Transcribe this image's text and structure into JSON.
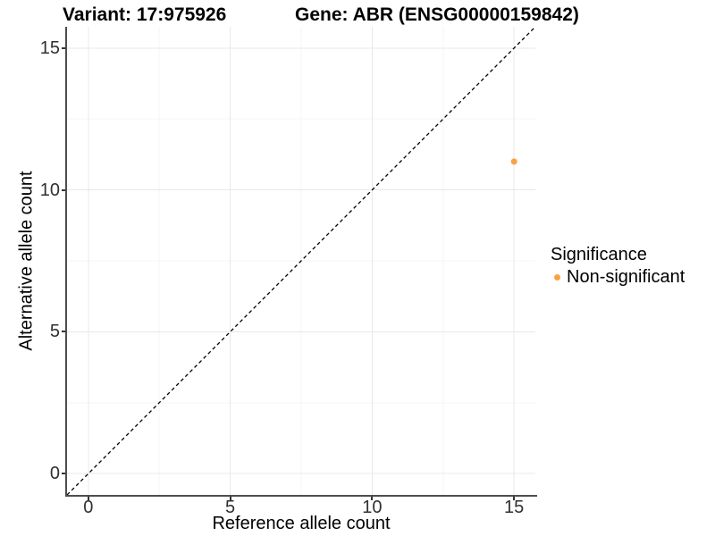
{
  "titles": {
    "variant": "Variant: 17:975926",
    "gene": "Gene: ABR (ENSG00000159842)"
  },
  "axes": {
    "x": {
      "label": "Reference allele count",
      "tick_values": [
        0,
        5,
        10,
        15
      ],
      "tick_labels": [
        "0",
        "5",
        "10",
        "15"
      ],
      "minor_ticks": [
        2.5,
        7.5,
        12.5
      ],
      "range": [
        -0.75,
        15.75
      ]
    },
    "y": {
      "label": "Alternative allele count",
      "tick_values": [
        0,
        5,
        10,
        15
      ],
      "tick_labels": [
        "0",
        "5",
        "10",
        "15"
      ],
      "minor_ticks": [
        2.5,
        7.5,
        12.5
      ],
      "range": [
        -0.75,
        15.75
      ]
    }
  },
  "legend": {
    "title": "Significance",
    "items": [
      {
        "label": "Non-significant",
        "color": "#F9A242"
      }
    ]
  },
  "styles": {
    "grid_major_color": "#E8E8E8",
    "grid_minor_color": "#F4F4F4",
    "axis_line_color": "#4D4D4D",
    "tick_mark_color": "#333333",
    "point_color": "#F9A242",
    "abline_color": "#000000",
    "background": "#FFFFFF"
  },
  "chart_data": {
    "type": "scatter",
    "title": "Variant: 17:975926 | Gene: ABR (ENSG00000159842)",
    "xlabel": "Reference allele count",
    "ylabel": "Alternative allele count",
    "xlim": [
      -0.75,
      15.75
    ],
    "ylim": [
      -0.75,
      15.75
    ],
    "x_ticks": [
      0,
      5,
      10,
      15
    ],
    "y_ticks": [
      0,
      5,
      10,
      15
    ],
    "grid": true,
    "legend_position": "right",
    "series": [
      {
        "name": "Non-significant",
        "color": "#F9A242",
        "points": [
          {
            "x": 15,
            "y": 11
          }
        ]
      }
    ],
    "reference_line": {
      "type": "abline",
      "slope": 1,
      "intercept": 0,
      "style": "dashed",
      "color": "#000000"
    }
  }
}
